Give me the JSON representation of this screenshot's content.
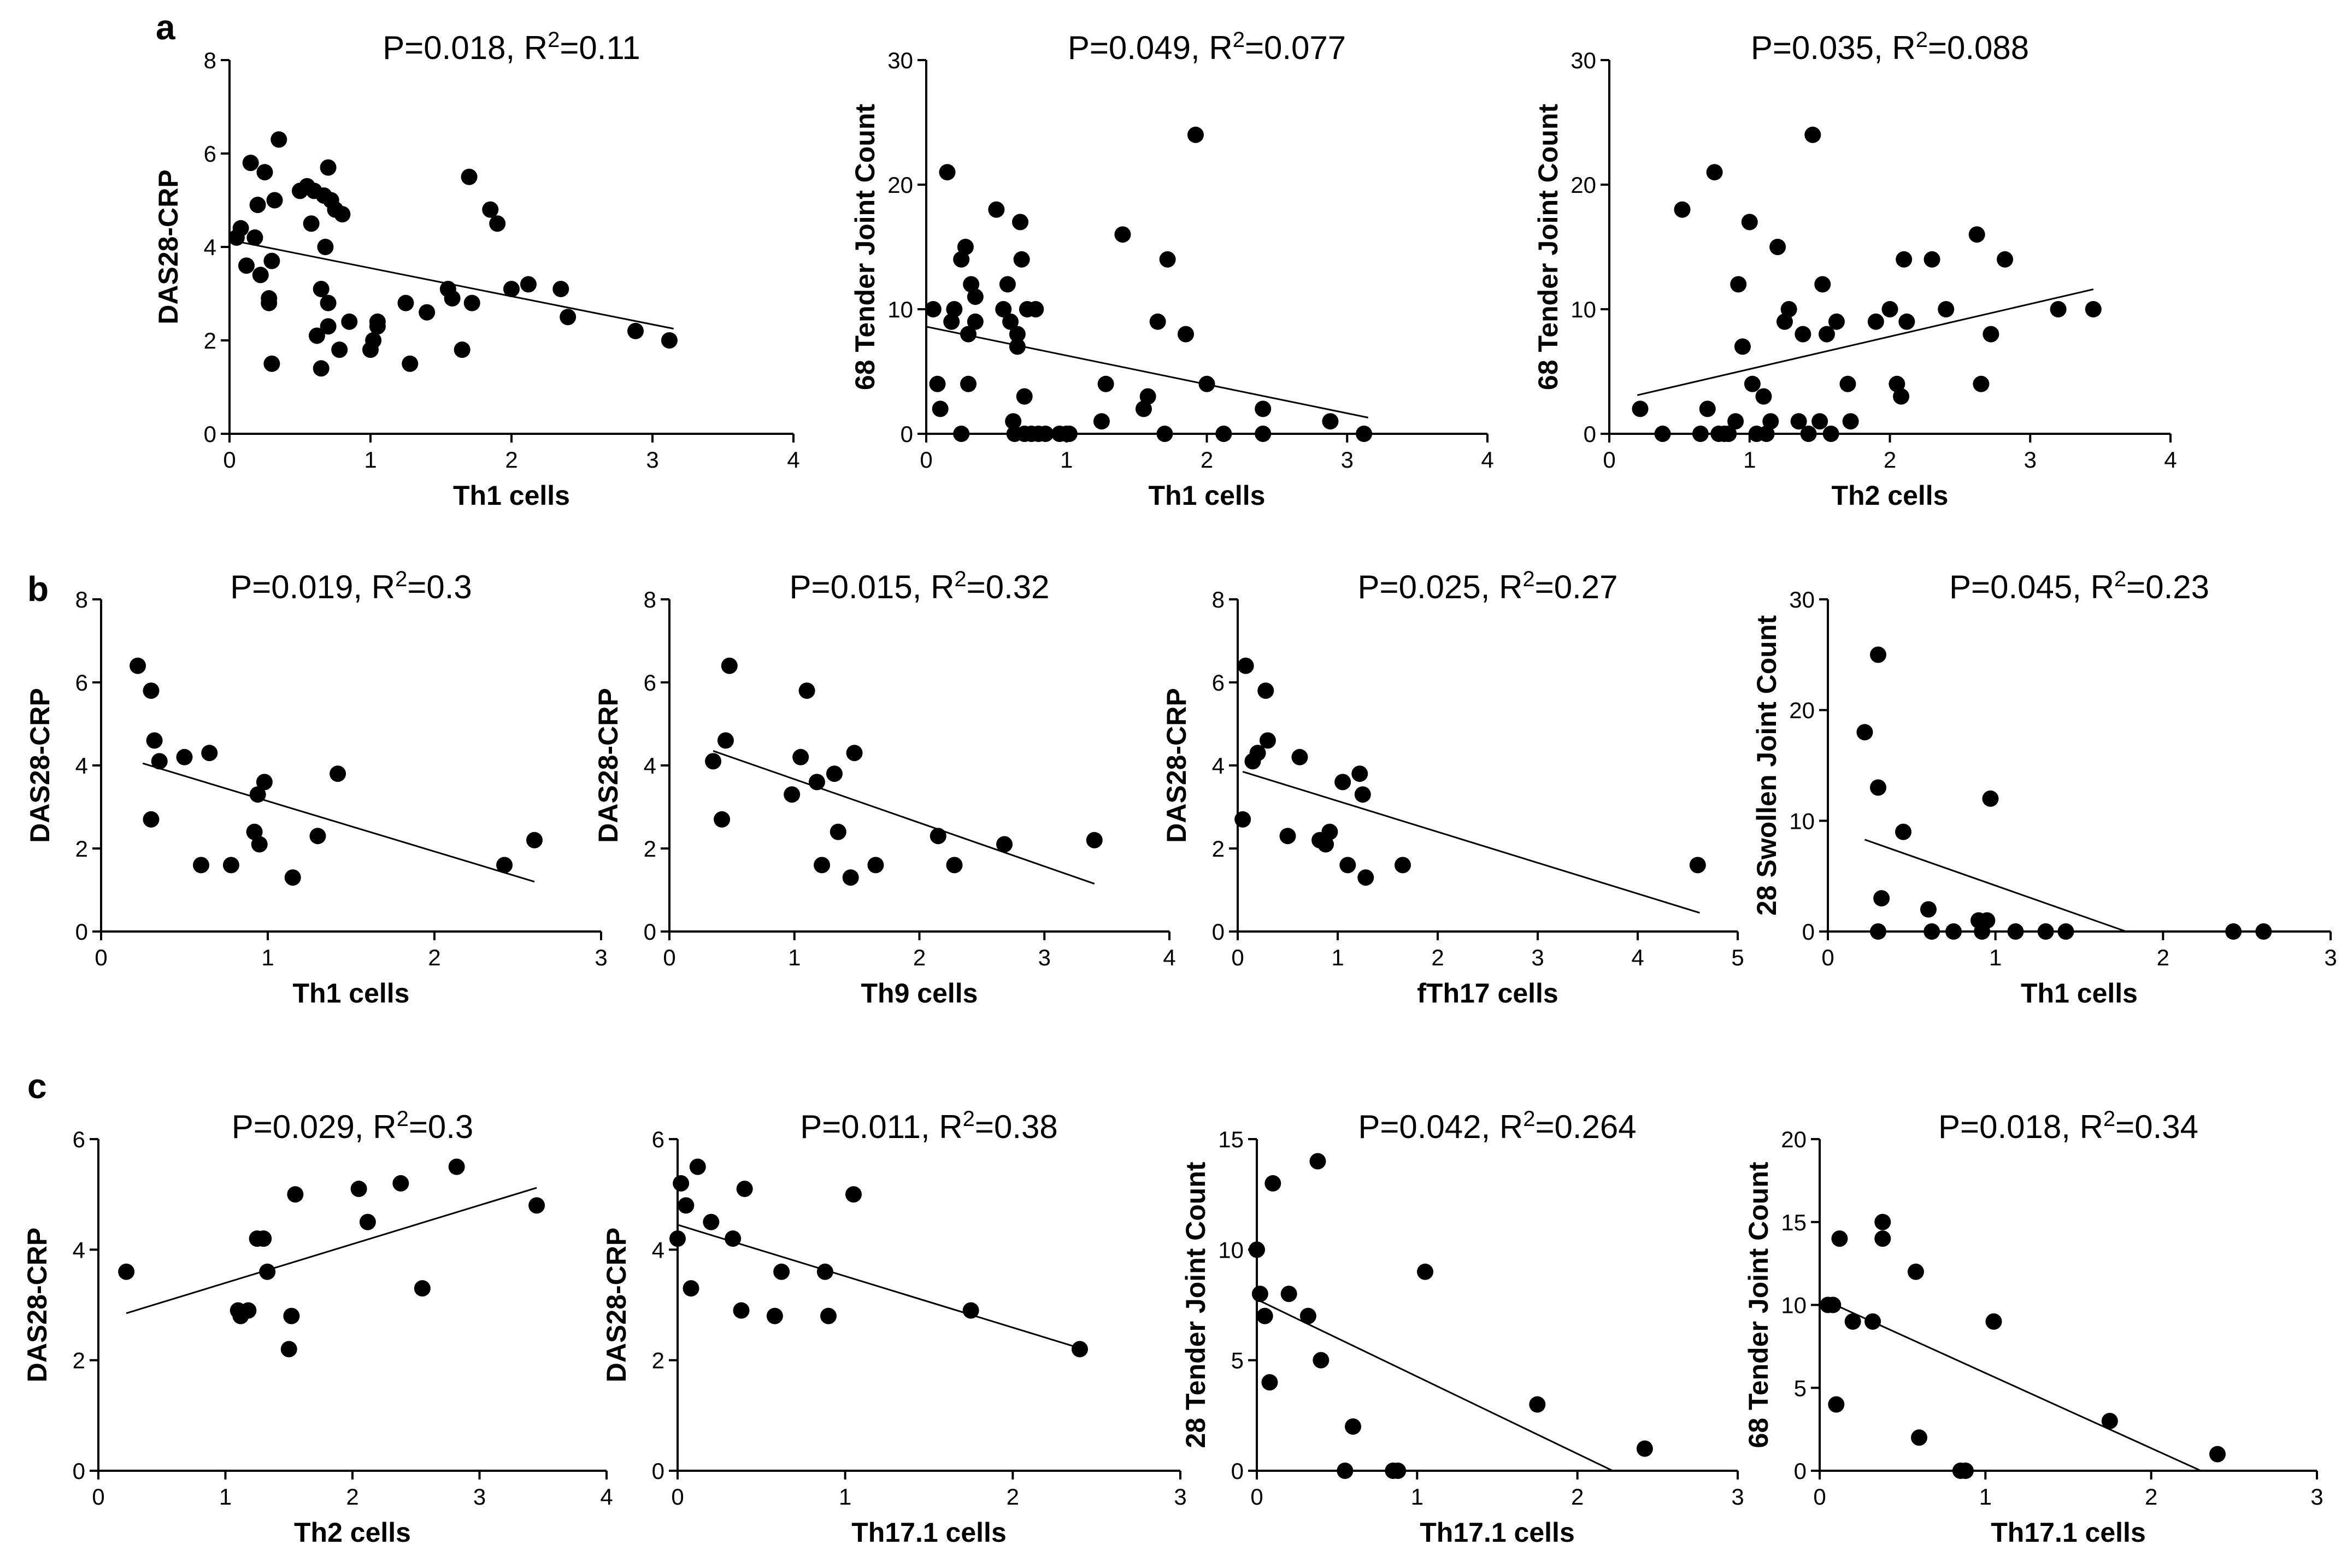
{
  "figure": {
    "panel_labels": [
      "a",
      "b",
      "c"
    ]
  },
  "chart_data": [
    {
      "type": "scatter",
      "id": "a1",
      "title": {
        "p": "P=0.018",
        "r": "R",
        "sup": "2",
        "rv": "=0.11"
      },
      "xlabel": "Th1 cells",
      "ylabel": "DAS28-CRP",
      "xlim": [
        0,
        4
      ],
      "ylim": [
        0,
        8
      ],
      "xticks": [
        0,
        1,
        2,
        3,
        4
      ],
      "yticks": [
        0,
        2,
        4,
        6,
        8
      ],
      "x": [
        0.05,
        0.08,
        0.12,
        0.15,
        0.18,
        0.2,
        0.22,
        0.25,
        0.28,
        0.28,
        0.3,
        0.3,
        0.32,
        0.35,
        0.5,
        0.55,
        0.58,
        0.6,
        0.62,
        0.65,
        0.65,
        0.67,
        0.68,
        0.7,
        0.7,
        0.7,
        0.72,
        0.75,
        0.78,
        0.8,
        0.85,
        1.0,
        1.02,
        1.05,
        1.05,
        1.25,
        1.28,
        1.4,
        1.55,
        1.58,
        1.65,
        1.7,
        1.72,
        1.85,
        1.9,
        2.0,
        2.12,
        2.35,
        2.4,
        2.88,
        3.12
      ],
      "y": [
        4.2,
        4.4,
        3.6,
        5.8,
        4.2,
        4.9,
        3.4,
        5.6,
        2.8,
        2.9,
        1.5,
        3.7,
        5.0,
        6.3,
        5.2,
        5.3,
        4.5,
        5.2,
        2.1,
        3.1,
        1.4,
        5.1,
        4.0,
        2.8,
        2.3,
        5.7,
        5.0,
        4.8,
        1.8,
        4.7,
        2.4,
        1.8,
        2.0,
        2.3,
        2.4,
        2.8,
        1.5,
        2.6,
        3.1,
        2.9,
        1.8,
        5.5,
        2.8,
        4.8,
        4.5,
        3.1,
        3.2,
        3.1,
        2.5,
        2.2,
        2.0
      ],
      "fit": {
        "x1": 0,
        "y1": 4.15,
        "x2": 3.15,
        "y2": 2.25
      }
    },
    {
      "type": "scatter",
      "id": "a2",
      "title": {
        "p": "P=0.049",
        "r": "R",
        "sup": "2",
        "rv": "=0.077"
      },
      "xlabel": "Th1 cells",
      "ylabel": "68 Tender Joint Count",
      "xlim": [
        0,
        4
      ],
      "ylim": [
        0,
        30
      ],
      "xticks": [
        0,
        1,
        2,
        3,
        4
      ],
      "yticks": [
        0,
        10,
        20,
        30
      ],
      "x": [
        0.05,
        0.08,
        0.1,
        0.15,
        0.18,
        0.2,
        0.25,
        0.25,
        0.28,
        0.3,
        0.3,
        0.32,
        0.35,
        0.35,
        0.5,
        0.55,
        0.58,
        0.6,
        0.62,
        0.63,
        0.65,
        0.65,
        0.67,
        0.68,
        0.7,
        0.7,
        0.72,
        0.75,
        0.78,
        0.8,
        0.85,
        0.95,
        1.0,
        1.02,
        1.25,
        1.28,
        1.4,
        1.55,
        1.58,
        1.65,
        1.7,
        1.72,
        1.85,
        1.92,
        2.0,
        2.12,
        2.4,
        2.4,
        2.88,
        3.12
      ],
      "y": [
        10,
        4,
        2,
        21,
        9,
        10,
        0,
        14,
        15,
        4,
        8,
        12,
        9,
        11,
        18,
        10,
        12,
        9,
        1,
        0,
        7,
        8,
        17,
        14,
        3,
        0,
        10,
        0,
        10,
        0,
        0,
        0,
        0,
        0,
        1,
        4,
        16,
        2,
        3,
        9,
        0,
        14,
        8,
        24,
        4,
        0,
        0,
        2,
        1,
        0
      ],
      "fit": {
        "x1": 0,
        "y1": 8.6,
        "x2": 3.15,
        "y2": 1.3
      }
    },
    {
      "type": "scatter",
      "id": "a3",
      "title": {
        "p": "P=0.035",
        "r": "R",
        "sup": "2",
        "rv": "=0.088"
      },
      "xlabel": "Th2 cells",
      "ylabel": "68 Tender Joint Count",
      "xlim": [
        0,
        4
      ],
      "ylim": [
        0,
        30
      ],
      "xticks": [
        0,
        1,
        2,
        3,
        4
      ],
      "yticks": [
        0,
        10,
        20,
        30
      ],
      "x": [
        0.22,
        0.38,
        0.52,
        0.65,
        0.7,
        0.75,
        0.78,
        0.82,
        0.85,
        0.9,
        0.92,
        0.95,
        1.0,
        1.02,
        1.05,
        1.1,
        1.12,
        1.15,
        1.2,
        1.25,
        1.28,
        1.35,
        1.38,
        1.42,
        1.45,
        1.5,
        1.52,
        1.55,
        1.58,
        1.62,
        1.7,
        1.72,
        1.9,
        2.0,
        2.05,
        2.08,
        2.1,
        2.12,
        2.3,
        2.4,
        2.62,
        2.65,
        2.72,
        2.82,
        3.2,
        3.45
      ],
      "y": [
        2,
        0,
        18,
        0,
        2,
        21,
        0,
        0,
        0,
        1,
        12,
        7,
        17,
        4,
        0,
        3,
        0,
        1,
        15,
        9,
        10,
        1,
        8,
        0,
        24,
        1,
        12,
        8,
        0,
        9,
        4,
        1,
        9,
        10,
        4,
        3,
        14,
        9,
        14,
        10,
        16,
        4,
        8,
        14,
        10,
        10
      ],
      "fit": {
        "x1": 0.2,
        "y1": 3.1,
        "x2": 3.45,
        "y2": 11.6
      }
    },
    {
      "type": "scatter",
      "id": "b1",
      "title": {
        "p": "P=0.019",
        "r": "R",
        "sup": "2",
        "rv": "=0.3"
      },
      "xlabel": "Th1 cells",
      "ylabel": "DAS28-CRP",
      "xlim": [
        0,
        3
      ],
      "ylim": [
        0,
        8
      ],
      "xticks": [
        0,
        1,
        2,
        3
      ],
      "yticks": [
        0,
        2,
        4,
        6,
        8
      ],
      "x": [
        0.22,
        0.3,
        0.3,
        0.32,
        0.35,
        0.5,
        0.6,
        0.65,
        0.78,
        0.92,
        0.94,
        0.95,
        0.98,
        1.15,
        1.3,
        1.42,
        2.42,
        2.6
      ],
      "y": [
        6.4,
        5.8,
        2.7,
        4.6,
        4.1,
        4.2,
        1.6,
        4.3,
        1.6,
        2.4,
        3.3,
        2.1,
        3.6,
        1.3,
        2.3,
        3.8,
        1.6,
        2.2
      ],
      "fit": {
        "x1": 0.25,
        "y1": 4.05,
        "x2": 2.6,
        "y2": 1.2
      }
    },
    {
      "type": "scatter",
      "id": "b2",
      "title": {
        "p": "P=0.015",
        "r": "R",
        "sup": "2",
        "rv": "=0.32"
      },
      "xlabel": "Th9 cells",
      "ylabel": "DAS28-CRP",
      "xlim": [
        0,
        4
      ],
      "ylim": [
        0,
        8
      ],
      "xticks": [
        0,
        1,
        2,
        3,
        4
      ],
      "yticks": [
        0,
        2,
        4,
        6,
        8
      ],
      "x": [
        0.35,
        0.42,
        0.45,
        0.48,
        0.98,
        1.05,
        1.1,
        1.18,
        1.22,
        1.32,
        1.35,
        1.45,
        1.48,
        1.65,
        2.15,
        2.28,
        2.68,
        3.4
      ],
      "y": [
        4.1,
        2.7,
        4.6,
        6.4,
        3.3,
        4.2,
        5.8,
        3.6,
        1.6,
        3.8,
        2.4,
        1.3,
        4.3,
        1.6,
        2.3,
        1.6,
        2.1,
        2.2
      ],
      "fit": {
        "x1": 0.35,
        "y1": 4.35,
        "x2": 3.4,
        "y2": 1.15
      }
    },
    {
      "type": "scatter",
      "id": "b3",
      "title": {
        "p": "P=0.025",
        "r": "R",
        "sup": "2",
        "rv": "=0.27"
      },
      "xlabel": "fTh17 cells",
      "ylabel": "DAS28-CRP",
      "xlim": [
        0,
        5
      ],
      "ylim": [
        0,
        8
      ],
      "xticks": [
        0,
        1,
        2,
        3,
        4,
        5
      ],
      "yticks": [
        0,
        2,
        4,
        6,
        8
      ],
      "x": [
        0.05,
        0.08,
        0.15,
        0.2,
        0.28,
        0.3,
        0.5,
        0.62,
        0.82,
        0.88,
        0.92,
        1.05,
        1.1,
        1.22,
        1.25,
        1.28,
        1.65,
        4.6
      ],
      "y": [
        2.7,
        6.4,
        4.1,
        4.3,
        5.8,
        4.6,
        2.3,
        4.2,
        2.2,
        2.1,
        2.4,
        3.6,
        1.6,
        3.8,
        3.3,
        1.3,
        1.6,
        1.6
      ],
      "fit": {
        "x1": 0.05,
        "y1": 3.85,
        "x2": 4.62,
        "y2": 0.45
      }
    },
    {
      "type": "scatter",
      "id": "b4",
      "title": {
        "p": "P=0.045",
        "r": "R",
        "sup": "2",
        "rv": "=0.23"
      },
      "xlabel": "Th1 cells",
      "ylabel": "28 Swollen Joint Count",
      "xlim": [
        0,
        3
      ],
      "ylim": [
        0,
        30
      ],
      "xticks": [
        0,
        1,
        2,
        3
      ],
      "yticks": [
        0,
        10,
        20,
        30
      ],
      "x": [
        0.22,
        0.3,
        0.3,
        0.3,
        0.32,
        0.45,
        0.6,
        0.62,
        0.75,
        0.9,
        0.92,
        0.95,
        0.97,
        1.12,
        1.3,
        1.42,
        2.42,
        2.6
      ],
      "y": [
        18,
        25,
        13,
        0,
        3,
        9,
        2,
        0,
        0,
        1,
        0,
        1,
        12,
        0,
        0,
        0,
        0,
        0
      ],
      "fit": {
        "x1": 0.22,
        "y1": 8.3,
        "x2": 1.78,
        "y2": 0
      }
    },
    {
      "type": "scatter",
      "id": "c1",
      "title": {
        "p": "P=0.029",
        "r": "R",
        "sup": "2",
        "rv": "=0.3"
      },
      "xlabel": "Th2 cells",
      "ylabel": "DAS28-CRP",
      "xlim": [
        0,
        4
      ],
      "ylim": [
        0,
        6
      ],
      "xticks": [
        0,
        1,
        2,
        3,
        4
      ],
      "yticks": [
        0,
        2,
        4,
        6
      ],
      "x": [
        0.22,
        1.1,
        1.12,
        1.18,
        1.25,
        1.3,
        1.33,
        1.5,
        1.52,
        1.55,
        2.05,
        2.12,
        2.38,
        2.55,
        2.82,
        3.45
      ],
      "y": [
        3.6,
        2.9,
        2.8,
        2.9,
        4.2,
        4.2,
        3.6,
        2.2,
        2.8,
        5.0,
        5.1,
        4.5,
        5.2,
        3.3,
        5.5,
        4.8
      ],
      "fit": {
        "x1": 0.22,
        "y1": 2.85,
        "x2": 3.45,
        "y2": 5.12
      }
    },
    {
      "type": "scatter",
      "id": "c2",
      "title": {
        "p": "P=0.011",
        "r": "R",
        "sup": "2",
        "rv": "=0.38"
      },
      "xlabel": "Th17.1 cells",
      "ylabel": "DAS28-CRP",
      "xlim": [
        0,
        3
      ],
      "ylim": [
        0,
        6
      ],
      "xticks": [
        0,
        1,
        2,
        3
      ],
      "yticks": [
        0,
        2,
        4,
        6
      ],
      "x": [
        0,
        0.02,
        0.05,
        0.08,
        0.12,
        0.2,
        0.33,
        0.38,
        0.4,
        0.58,
        0.62,
        0.88,
        0.9,
        1.05,
        1.75,
        2.4
      ],
      "y": [
        4.2,
        5.2,
        4.8,
        3.3,
        5.5,
        4.5,
        4.2,
        2.9,
        5.1,
        2.8,
        3.6,
        3.6,
        2.8,
        5.0,
        2.9,
        2.2
      ],
      "fit": {
        "x1": 0,
        "y1": 4.45,
        "x2": 2.42,
        "y2": 2.2
      }
    },
    {
      "type": "scatter",
      "id": "c3",
      "title": {
        "p": "P=0.042",
        "r": "R",
        "sup": "2",
        "rv": "=0.264"
      },
      "xlabel": "Th17.1 cells",
      "ylabel": "28 Tender Joint Count",
      "xlim": [
        0,
        3
      ],
      "ylim": [
        0,
        15
      ],
      "xticks": [
        0,
        1,
        2,
        3
      ],
      "yticks": [
        0,
        5,
        10,
        15
      ],
      "x": [
        0,
        0.02,
        0.05,
        0.08,
        0.1,
        0.2,
        0.32,
        0.38,
        0.4,
        0.55,
        0.6,
        0.85,
        0.88,
        1.05,
        1.75,
        2.42
      ],
      "y": [
        10,
        8,
        7,
        4,
        13,
        8,
        7,
        14,
        5,
        0,
        2,
        0,
        0,
        9,
        3,
        1
      ],
      "fit": {
        "x1": 0,
        "y1": 7.75,
        "x2": 2.22,
        "y2": 0
      }
    },
    {
      "type": "scatter",
      "id": "c4",
      "title": {
        "p": "P=0.018",
        "r": "R",
        "sup": "2",
        "rv": "=0.34"
      },
      "xlabel": "Th17.1 cells",
      "ylabel": "68 Tender Joint Count",
      "xlim": [
        0,
        3
      ],
      "ylim": [
        0,
        20
      ],
      "xticks": [
        0,
        1,
        2,
        3
      ],
      "yticks": [
        0,
        5,
        10,
        15,
        20
      ],
      "x": [
        0.05,
        0.08,
        0.1,
        0.12,
        0.2,
        0.32,
        0.38,
        0.38,
        0.58,
        0.6,
        0.85,
        0.88,
        1.05,
        1.75,
        2.4
      ],
      "y": [
        10,
        10,
        4,
        14,
        9,
        9,
        14,
        15,
        12,
        2,
        0,
        0,
        9,
        3,
        1
      ],
      "fit": {
        "x1": 0.05,
        "y1": 10.2,
        "x2": 2.3,
        "y2": 0
      }
    }
  ]
}
